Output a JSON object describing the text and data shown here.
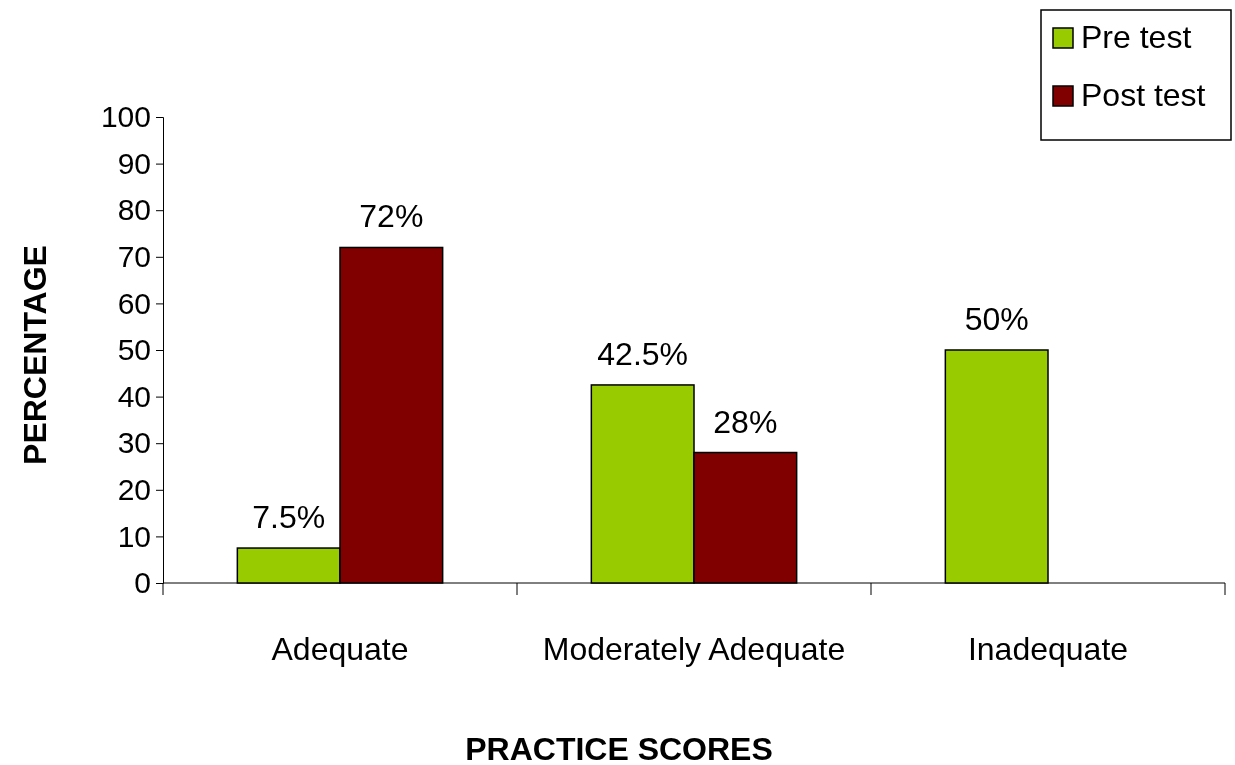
{
  "chart_data": {
    "type": "bar",
    "xlabel": "PRACTICE SCORES",
    "ylabel": "PERCENTAGE",
    "categories": [
      "Adequate",
      "Moderately Adequate",
      "Inadequate"
    ],
    "series": [
      {
        "name": "Pre test",
        "color": "#99cc00",
        "values": [
          7.5,
          42.5,
          50
        ],
        "value_labels": [
          "7.5%",
          "42.5%",
          "50%"
        ]
      },
      {
        "name": "Post test",
        "color": "#800000",
        "values": [
          72,
          28,
          null
        ],
        "value_labels": [
          "72%",
          "28%",
          null
        ]
      }
    ],
    "ylim": [
      0,
      100
    ],
    "yticks": [
      0,
      10,
      20,
      30,
      40,
      50,
      60,
      70,
      80,
      90,
      100
    ],
    "grid": false,
    "legend": "top right"
  }
}
